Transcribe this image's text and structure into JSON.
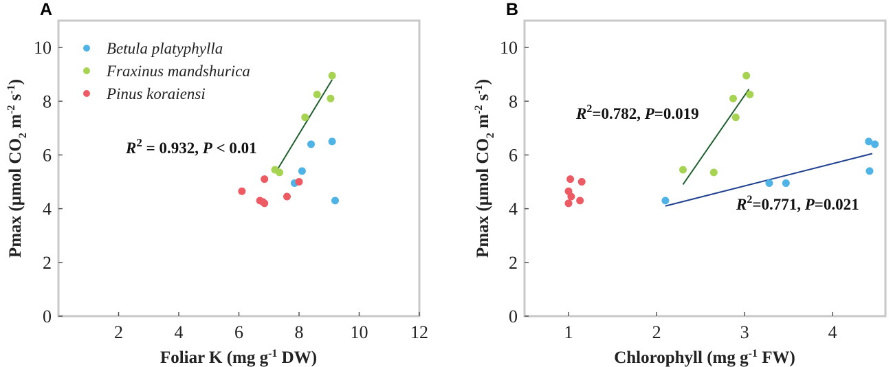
{
  "colors": {
    "betula": "#4fb3e6",
    "fraxinus": "#a6d452",
    "pinus": "#ec5a63",
    "frame": "#c8c8c8",
    "fit_green": "#1f5f2e",
    "fit_blue": "#1f3f8f"
  },
  "chart_data": [
    {
      "type": "scatter",
      "panel_label": "A",
      "xlabel": {
        "text": "Foliar K (mg g",
        "sup": "-1",
        "tail": " DW)"
      },
      "ylabel": {
        "lead": "Pmax (μmol CO",
        "sub": "2",
        "mid": " m",
        "sup1": "-2",
        "mid2": " s",
        "sup2": "-1",
        "tail": ")"
      },
      "xlim": [
        0,
        12
      ],
      "ylim": [
        0,
        11
      ],
      "xticks": [
        2,
        4,
        6,
        8,
        10,
        12
      ],
      "yticks": [
        0,
        2,
        4,
        6,
        8,
        10
      ],
      "legend": {
        "position": "top-left",
        "entries": [
          "Betula platyphylla",
          "Fraxinus mandshurica",
          "Pinus koraiensi"
        ]
      },
      "series": [
        {
          "name": "Betula platyphylla",
          "color_key": "betula",
          "points": [
            [
              7.85,
              4.95
            ],
            [
              8.1,
              5.4
            ],
            [
              8.4,
              6.4
            ],
            [
              9.1,
              6.5
            ],
            [
              9.2,
              4.3
            ]
          ]
        },
        {
          "name": "Fraxinus mandshurica",
          "color_key": "fraxinus",
          "points": [
            [
              7.2,
              5.45
            ],
            [
              7.35,
              5.35
            ],
            [
              8.2,
              7.4
            ],
            [
              8.6,
              8.25
            ],
            [
              9.05,
              8.1
            ],
            [
              9.1,
              8.95
            ]
          ]
        },
        {
          "name": "Pinus koraiensi",
          "color_key": "pinus",
          "points": [
            [
              6.1,
              4.65
            ],
            [
              6.7,
              4.3
            ],
            [
              6.8,
              4.25
            ],
            [
              6.85,
              4.2
            ],
            [
              6.85,
              5.1
            ],
            [
              7.6,
              4.45
            ],
            [
              8.0,
              5.0
            ]
          ]
        }
      ],
      "fit_lines": [
        {
          "color_key": "fit_green",
          "x": [
            7.25,
            9.1
          ],
          "y": [
            5.4,
            8.8
          ]
        }
      ],
      "annotations": [
        {
          "r2_label": "R",
          "r2_sup": "2",
          "r2_value": " = 0.932, ",
          "p_label": "P",
          "p_value": " < 0.01"
        }
      ]
    },
    {
      "type": "scatter",
      "panel_label": "B",
      "xlabel": {
        "text": "Chlorophyll (mg g",
        "sup": "-1",
        "tail": " FW)"
      },
      "ylabel": {
        "lead": "Pmax (μmol CO",
        "sub": "2",
        "mid": " m",
        "sup1": "-2",
        "mid2": " s",
        "sup2": "-1",
        "tail": ")"
      },
      "xlim": [
        0.5,
        4.6
      ],
      "ylim": [
        0,
        11
      ],
      "xticks": [
        1,
        2,
        3,
        4
      ],
      "yticks": [
        0,
        2,
        4,
        6,
        8,
        10
      ],
      "series": [
        {
          "name": "Betula platyphylla",
          "color_key": "betula",
          "points": [
            [
              2.1,
              4.3
            ],
            [
              3.28,
              4.95
            ],
            [
              3.47,
              4.95
            ],
            [
              4.41,
              6.5
            ],
            [
              4.42,
              5.4
            ],
            [
              4.48,
              6.4
            ]
          ]
        },
        {
          "name": "Fraxinus mandshurica",
          "color_key": "fraxinus",
          "points": [
            [
              2.3,
              5.45
            ],
            [
              2.65,
              5.35
            ],
            [
              2.87,
              8.1
            ],
            [
              2.9,
              7.4
            ],
            [
              3.02,
              8.95
            ],
            [
              3.06,
              8.25
            ]
          ]
        },
        {
          "name": "Pinus koraiensi",
          "color_key": "pinus",
          "points": [
            [
              1.0,
              4.2
            ],
            [
              1.0,
              4.65
            ],
            [
              1.02,
              5.1
            ],
            [
              1.03,
              4.45
            ],
            [
              1.13,
              4.3
            ],
            [
              1.15,
              5.0
            ]
          ]
        }
      ],
      "fit_lines": [
        {
          "color_key": "fit_green",
          "x": [
            2.3,
            3.05
          ],
          "y": [
            4.9,
            8.45
          ]
        },
        {
          "color_key": "fit_blue",
          "x": [
            2.1,
            4.45
          ],
          "y": [
            4.1,
            6.05
          ]
        }
      ],
      "annotations": [
        {
          "r2_label": "R",
          "r2_sup": "2",
          "r2_value": "=0.782, ",
          "p_label": "P",
          "p_value": "=0.019"
        },
        {
          "r2_label": "R",
          "r2_sup": "2",
          "r2_value": "=0.771, ",
          "p_label": "P",
          "p_value": "=0.021"
        }
      ]
    }
  ]
}
